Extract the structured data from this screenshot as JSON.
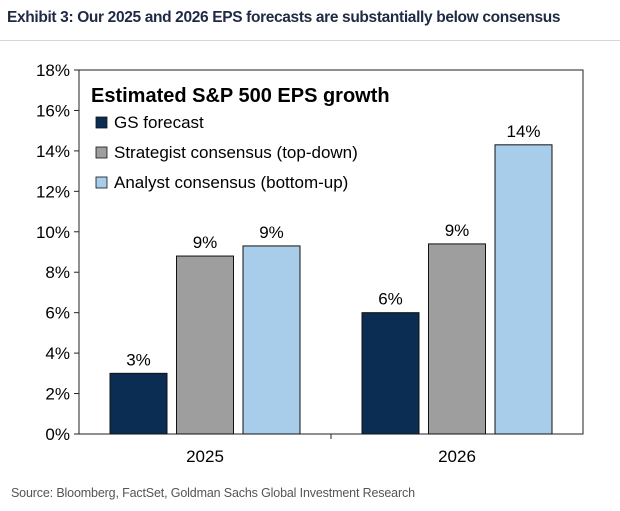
{
  "header": {
    "title": "Exhibit 3: Our 2025 and 2026 EPS forecasts are substantially below consensus"
  },
  "footer": {
    "source": "Source: Bloomberg, FactSet, Goldman Sachs Global Investment Research"
  },
  "chart_data": {
    "type": "bar",
    "title": "Estimated S&P 500 EPS growth",
    "categories": [
      "2025",
      "2026"
    ],
    "series": [
      {
        "name": "GS forecast",
        "values": [
          3.0,
          6.0
        ],
        "labels": [
          "3%",
          "6%"
        ],
        "color": "#0c2d53"
      },
      {
        "name": "Strategist consensus (top-down)",
        "values": [
          8.8,
          9.4
        ],
        "labels": [
          "9%",
          "9%"
        ],
        "color": "#9e9e9e"
      },
      {
        "name": "Analyst consensus (bottom-up)",
        "values": [
          9.3,
          14.3
        ],
        "labels": [
          "9%",
          "14%"
        ],
        "color": "#a8cdea"
      }
    ],
    "ylim": [
      0,
      18
    ],
    "yticks": [
      0,
      2,
      4,
      6,
      8,
      10,
      12,
      14,
      16,
      18
    ],
    "ytick_labels": [
      "0%",
      "2%",
      "4%",
      "6%",
      "8%",
      "10%",
      "12%",
      "14%",
      "16%",
      "18%"
    ],
    "xlabel": "",
    "ylabel": "",
    "grid": false,
    "legend_position": "top-left"
  }
}
